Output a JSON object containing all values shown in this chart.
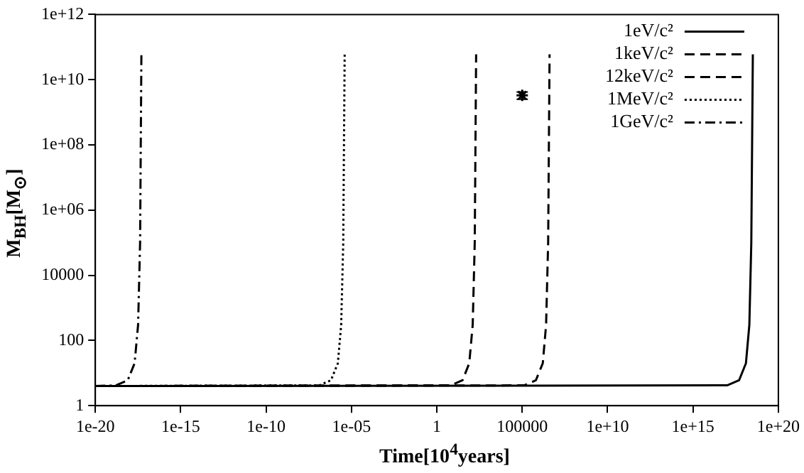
{
  "chart_data": {
    "type": "line",
    "xlabel": "Time[10$^{4}$years]",
    "ylabel": "M$_{BH}$[M$_{⊙}$]",
    "log": "xy",
    "grid": false,
    "legend": "top right",
    "xlim": [
      1e-20,
      1e+20
    ],
    "xticks": [
      {
        "value": 1e-20,
        "label": "1e-20"
      },
      {
        "value": 1e-15,
        "label": "1e-15"
      },
      {
        "value": 1e-10,
        "label": "1e-10"
      },
      {
        "value": 1e-05,
        "label": "1e-05"
      },
      1,
      100000,
      {
        "value": 10000000000.0,
        "label": "1e+10"
      },
      {
        "value": 1000000000000000.0,
        "label": "1e+15"
      },
      {
        "value": 1e+20,
        "label": "1e+20"
      }
    ],
    "ylim": [
      1,
      1000000000000.0
    ],
    "yticks": [
      1,
      100,
      10000,
      {
        "value": 1000000.0,
        "label": "1e+06"
      },
      {
        "value": 100000000.0,
        "label": "1e+08"
      },
      {
        "value": 10000000000.0,
        "label": "1e+10"
      },
      {
        "value": 1000000000000.0,
        "label": "1e+12"
      }
    ],
    "series": [
      {
        "name": "1eV/c²",
        "color": "#000000",
        "line_style": "solid",
        "x": [
          1e-20,
          1e+17,
          5e+17,
          1.26e+18,
          2e+18,
          2.6e+18,
          3.2e+18
        ],
        "values": [
          4,
          4.2,
          6,
          20,
          300,
          100000,
          60000000000.0
        ]
      },
      {
        "name": "1keV/c²",
        "color": "#000000",
        "line_style": "dashed",
        "x": [
          1e-20,
          130000.0,
          630000.0,
          1600000.0,
          2500000.0,
          3300000.0,
          4000000.0
        ],
        "values": [
          4,
          4.2,
          6,
          20,
          300,
          100000,
          60000000000.0
        ]
      },
      {
        "name": "12keV/c²",
        "color": "#000000",
        "line_style": "dashed",
        "x": [
          1e-20,
          6.3,
          32,
          79,
          126,
          166,
          200
        ],
        "values": [
          4,
          4.2,
          6,
          20,
          300,
          100000,
          60000000000.0
        ]
      },
      {
        "name": "1MeV/c²",
        "color": "#000000",
        "line_style": "dotted",
        "x": [
          1e-20,
          1.3e-07,
          6.3e-07,
          1.6e-06,
          2.5e-06,
          3.3e-06,
          4e-06
        ],
        "values": [
          4,
          4.2,
          6,
          20,
          300,
          100000,
          60000000000.0
        ]
      },
      {
        "name": "1GeV/c²",
        "color": "#000000",
        "line_style": "dashdot",
        "x": [
          1e-20,
          1.6e-19,
          7.9e-19,
          2e-18,
          3.2e-18,
          4.2e-18,
          5e-18
        ],
        "values": [
          4,
          4.2,
          6,
          20,
          300,
          100000,
          60000000000.0
        ]
      },
      {
        "type": "scatter",
        "color": "#000000",
        "marker": "cross",
        "x": [
          100000
        ],
        "values": [
          3300000000.0
        ],
        "errors": [
          [
            2500000000.0,
            4200000000.0
          ]
        ]
      }
    ]
  }
}
